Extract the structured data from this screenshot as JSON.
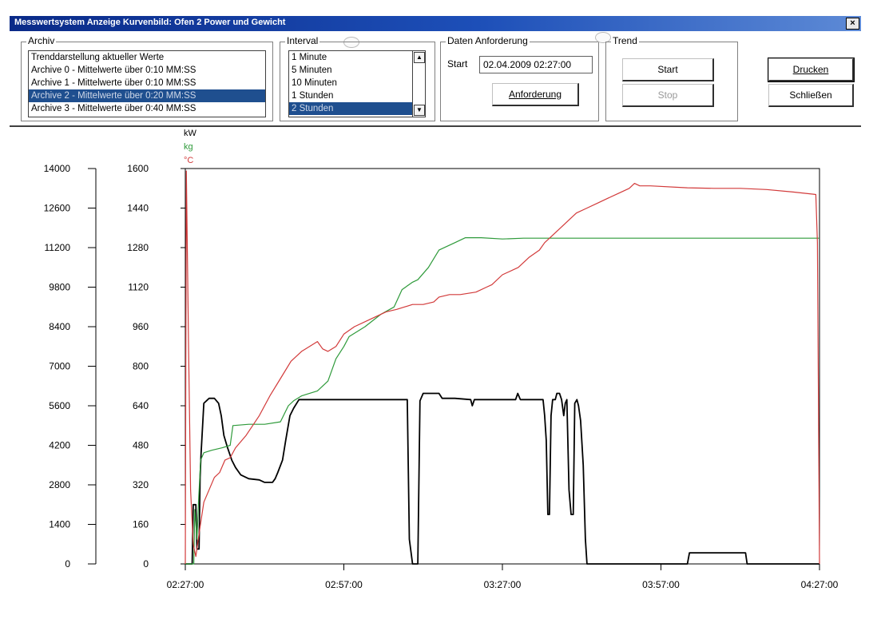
{
  "window": {
    "title": "Messwertsystem Anzeige Kurvenbild: Ofen 2 Power und Gewicht",
    "close_glyph": "×"
  },
  "archiv": {
    "legend": "Archiv",
    "items": [
      "Trenddarstellung aktueller Werte",
      "Archive 0 - Mittelwerte über 0:10 MM:SS",
      "Archive 1 - Mittelwerte über 0:10 MM:SS",
      "Archive 2 - Mittelwerte über 0:20 MM:SS",
      "Archive 3 - Mittelwerte über 0:40 MM:SS"
    ],
    "selected_index": 3
  },
  "interval": {
    "legend": "Interval",
    "items": [
      "1 Minute",
      "5 Minuten",
      "10 Minuten",
      "1 Stunden",
      "2 Stunden"
    ],
    "selected_index": 4,
    "scroll_up": "▲",
    "scroll_down": "▼"
  },
  "daten": {
    "legend": "Daten Anforderung",
    "start_label": "Start",
    "start_value": "02.04.2009 02:27:00",
    "request_button": "Anforderung"
  },
  "trend": {
    "legend": "Trend",
    "start_button": "Start",
    "stop_button": "Stop"
  },
  "actions": {
    "print_button": "Drucken",
    "close_button": "Schließen"
  },
  "chart_data": {
    "type": "line",
    "units": [
      {
        "label": "kW",
        "color": "#000000"
      },
      {
        "label": "kg",
        "color": "#2e9a3a"
      },
      {
        "label": "°C",
        "color": "#d23a3a"
      }
    ],
    "left_axis_ticks": [
      0,
      1400,
      2800,
      4200,
      5600,
      7000,
      8400,
      9800,
      11200,
      12600,
      14000
    ],
    "right_axis_ticks": [
      0,
      160,
      320,
      480,
      640,
      800,
      960,
      1120,
      1280,
      1440,
      1600
    ],
    "ylim": [
      0,
      1600
    ],
    "x_ticks": [
      "02:27:00",
      "02:57:00",
      "03:27:00",
      "03:57:00",
      "04:27:00"
    ],
    "xlim_minutes": [
      0,
      120
    ],
    "grid": false,
    "series": [
      {
        "color": "#000000",
        "points": [
          [
            0,
            0
          ],
          [
            1.3,
            0
          ],
          [
            1.5,
            240
          ],
          [
            2.0,
            240
          ],
          [
            2.2,
            60
          ],
          [
            2.6,
            60
          ],
          [
            2.8,
            350
          ],
          [
            3.0,
            450
          ],
          [
            3.5,
            650
          ],
          [
            4.5,
            670
          ],
          [
            5.5,
            670
          ],
          [
            6.3,
            650
          ],
          [
            6.8,
            600
          ],
          [
            7.3,
            520
          ],
          [
            8.0,
            470
          ],
          [
            8.8,
            420
          ],
          [
            9.5,
            390
          ],
          [
            10.5,
            360
          ],
          [
            12,
            345
          ],
          [
            14,
            340
          ],
          [
            15,
            330
          ],
          [
            16.5,
            330
          ],
          [
            17,
            345
          ],
          [
            17.5,
            370
          ],
          [
            18.4,
            420
          ],
          [
            19,
            500
          ],
          [
            19.8,
            600
          ],
          [
            20.5,
            630
          ],
          [
            21.5,
            665
          ],
          [
            22,
            665
          ],
          [
            30,
            665
          ],
          [
            42,
            665
          ],
          [
            42.4,
            100
          ],
          [
            43,
            0
          ],
          [
            44,
            0
          ],
          [
            44.4,
            660
          ],
          [
            45,
            690
          ],
          [
            48,
            690
          ],
          [
            48.6,
            670
          ],
          [
            51,
            670
          ],
          [
            54,
            665
          ],
          [
            54.3,
            640
          ],
          [
            54.7,
            665
          ],
          [
            56,
            665
          ],
          [
            62.5,
            665
          ],
          [
            62.9,
            690
          ],
          [
            63.4,
            665
          ],
          [
            65,
            665
          ],
          [
            67.7,
            665
          ],
          [
            68,
            600
          ],
          [
            68.3,
            500
          ],
          [
            68.6,
            200
          ],
          [
            68.9,
            200
          ],
          [
            69.2,
            600
          ],
          [
            69.5,
            665
          ],
          [
            70,
            665
          ],
          [
            70.3,
            690
          ],
          [
            70.8,
            690
          ],
          [
            71.2,
            665
          ],
          [
            71.6,
            600
          ],
          [
            71.9,
            650
          ],
          [
            72.2,
            665
          ],
          [
            72.6,
            300
          ],
          [
            73,
            200
          ],
          [
            73.4,
            200
          ],
          [
            73.7,
            650
          ],
          [
            74.1,
            665
          ],
          [
            74.4,
            640
          ],
          [
            74.8,
            580
          ],
          [
            75.3,
            400
          ],
          [
            75.7,
            100
          ],
          [
            76,
            0
          ],
          [
            95,
            0
          ],
          [
            95.4,
            45
          ],
          [
            106,
            45
          ],
          [
            106.3,
            0
          ],
          [
            120,
            0
          ]
        ]
      },
      {
        "color": "#2e9a3a",
        "points": [
          [
            0,
            0
          ],
          [
            1.6,
            0
          ],
          [
            1.8,
            220
          ],
          [
            2.2,
            100
          ],
          [
            2.5,
            250
          ],
          [
            2.9,
            420
          ],
          [
            3.5,
            450
          ],
          [
            5,
            460
          ],
          [
            7,
            470
          ],
          [
            8.5,
            480
          ],
          [
            9,
            560
          ],
          [
            12,
            565
          ],
          [
            15,
            565
          ],
          [
            18,
            575
          ],
          [
            19.5,
            640
          ],
          [
            20.5,
            660
          ],
          [
            22,
            680
          ],
          [
            25,
            700
          ],
          [
            27,
            740
          ],
          [
            28.5,
            830
          ],
          [
            30,
            880
          ],
          [
            31,
            920
          ],
          [
            34,
            960
          ],
          [
            37,
            1010
          ],
          [
            39.5,
            1040
          ],
          [
            41,
            1110
          ],
          [
            43,
            1140
          ],
          [
            44,
            1150
          ],
          [
            46,
            1200
          ],
          [
            48,
            1270
          ],
          [
            51,
            1300
          ],
          [
            53,
            1320
          ],
          [
            56,
            1320
          ],
          [
            60,
            1315
          ],
          [
            64,
            1318
          ],
          [
            68,
            1318
          ],
          [
            75,
            1318
          ],
          [
            85,
            1318
          ],
          [
            95,
            1318
          ],
          [
            110,
            1318
          ],
          [
            120,
            1318
          ]
        ]
      },
      {
        "color": "#d23a3a",
        "points": [
          [
            0,
            0
          ],
          [
            0.2,
            1590
          ],
          [
            0.6,
            900
          ],
          [
            1.0,
            300
          ],
          [
            1.5,
            80
          ],
          [
            2.0,
            30
          ],
          [
            2.8,
            150
          ],
          [
            3.5,
            250
          ],
          [
            4.5,
            300
          ],
          [
            5.5,
            350
          ],
          [
            6.5,
            370
          ],
          [
            7.5,
            420
          ],
          [
            8.5,
            430
          ],
          [
            9.5,
            470
          ],
          [
            11.5,
            520
          ],
          [
            14,
            600
          ],
          [
            16,
            680
          ],
          [
            18,
            750
          ],
          [
            20,
            820
          ],
          [
            22,
            860
          ],
          [
            25,
            900
          ],
          [
            26,
            870
          ],
          [
            27,
            860
          ],
          [
            28.5,
            880
          ],
          [
            30,
            930
          ],
          [
            32,
            960
          ],
          [
            35,
            990
          ],
          [
            38,
            1020
          ],
          [
            40,
            1030
          ],
          [
            43,
            1050
          ],
          [
            45,
            1050
          ],
          [
            47,
            1060
          ],
          [
            48,
            1080
          ],
          [
            50,
            1090
          ],
          [
            52,
            1090
          ],
          [
            55,
            1100
          ],
          [
            57,
            1120
          ],
          [
            58,
            1130
          ],
          [
            60,
            1170
          ],
          [
            63,
            1200
          ],
          [
            65,
            1240
          ],
          [
            67,
            1270
          ],
          [
            68,
            1300
          ],
          [
            70,
            1340
          ],
          [
            72,
            1380
          ],
          [
            74,
            1420
          ],
          [
            76,
            1440
          ],
          [
            78,
            1460
          ],
          [
            80,
            1480
          ],
          [
            82,
            1500
          ],
          [
            84,
            1520
          ],
          [
            85,
            1540
          ],
          [
            86,
            1530
          ],
          [
            88,
            1530
          ],
          [
            95,
            1522
          ],
          [
            100,
            1520
          ],
          [
            105,
            1520
          ],
          [
            110,
            1515
          ],
          [
            115,
            1505
          ],
          [
            119.3,
            1495
          ],
          [
            119.6,
            1300
          ],
          [
            120,
            0
          ]
        ]
      }
    ]
  }
}
